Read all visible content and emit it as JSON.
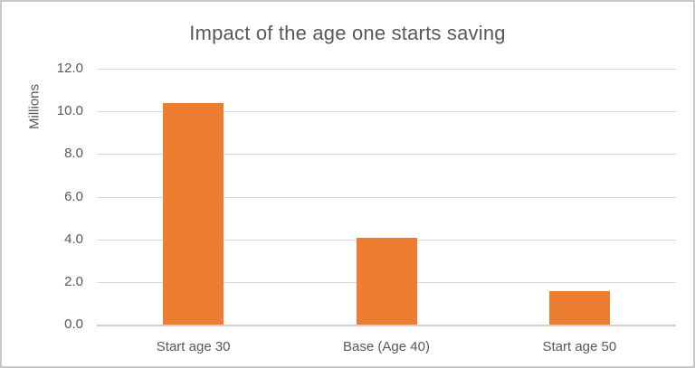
{
  "chart_data": {
    "type": "bar",
    "title": "Impact of the age one starts saving",
    "xlabel": "",
    "ylabel": "Millions",
    "categories": [
      "Start age 30",
      "Base (Age 40)",
      "Start age 50"
    ],
    "values": [
      10.4,
      4.05,
      1.55
    ],
    "ylim": [
      0,
      12
    ],
    "ytick_step": 2,
    "ytick_labels": [
      "0.0",
      "2.0",
      "4.0",
      "6.0",
      "8.0",
      "10.0",
      "12.0"
    ],
    "grid": true,
    "legend_position": "none",
    "bar_color": "#ED7D31"
  },
  "colors": {
    "bar": "#ED7D31",
    "title_text": "#595959",
    "axis_text": "#595959",
    "gridline": "#D9D9D9",
    "axis_line": "#CFCFCF",
    "frame_border": "#C8C8C8",
    "background": "#FFFFFF"
  }
}
